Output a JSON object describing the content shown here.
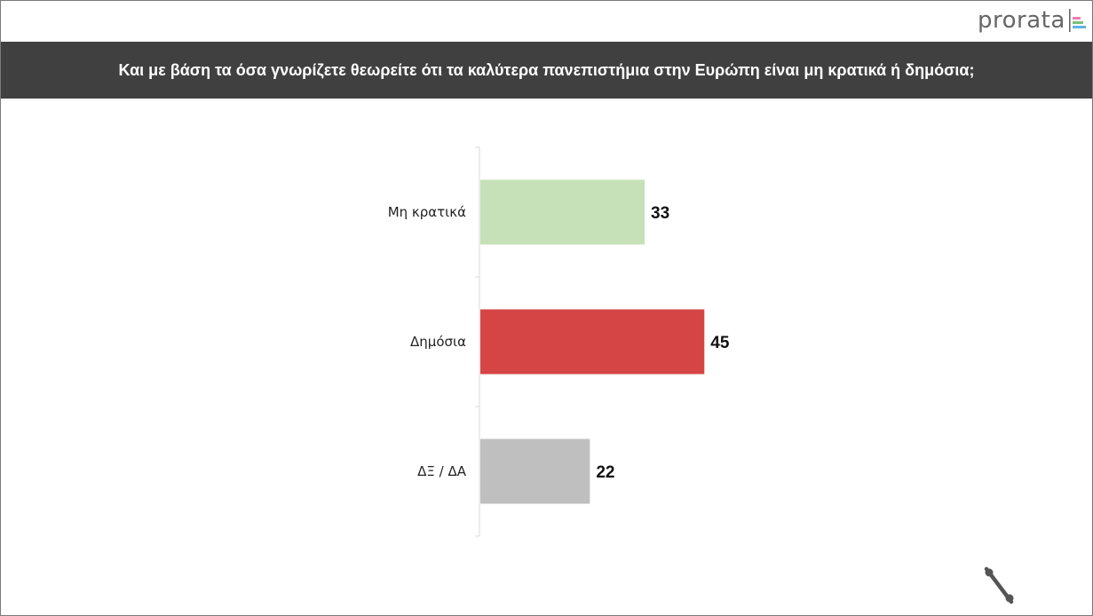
{
  "brand": {
    "name": "prorata",
    "mark_colors": [
      "#e87fb4",
      "#7ac07b",
      "#5fb2e0"
    ]
  },
  "question": "Και με βάση τα όσα γνωρίζετε θεωρείτε ότι τα καλύτερα πανεπιστήμια στην Ευρώπη είναι μη κρατικά ή δημόσια;",
  "footer_icon": "percent-icon",
  "chart_data": {
    "type": "bar",
    "orientation": "horizontal",
    "categories": [
      "Μη κρατικά",
      "Δημόσια",
      "ΔΞ / ΔΑ"
    ],
    "values": [
      33,
      45,
      22
    ],
    "colors": [
      "#c6e1b8",
      "#d64545",
      "#bfbfbf"
    ],
    "xlim": [
      0,
      100
    ],
    "grid": false,
    "legend": "none"
  }
}
